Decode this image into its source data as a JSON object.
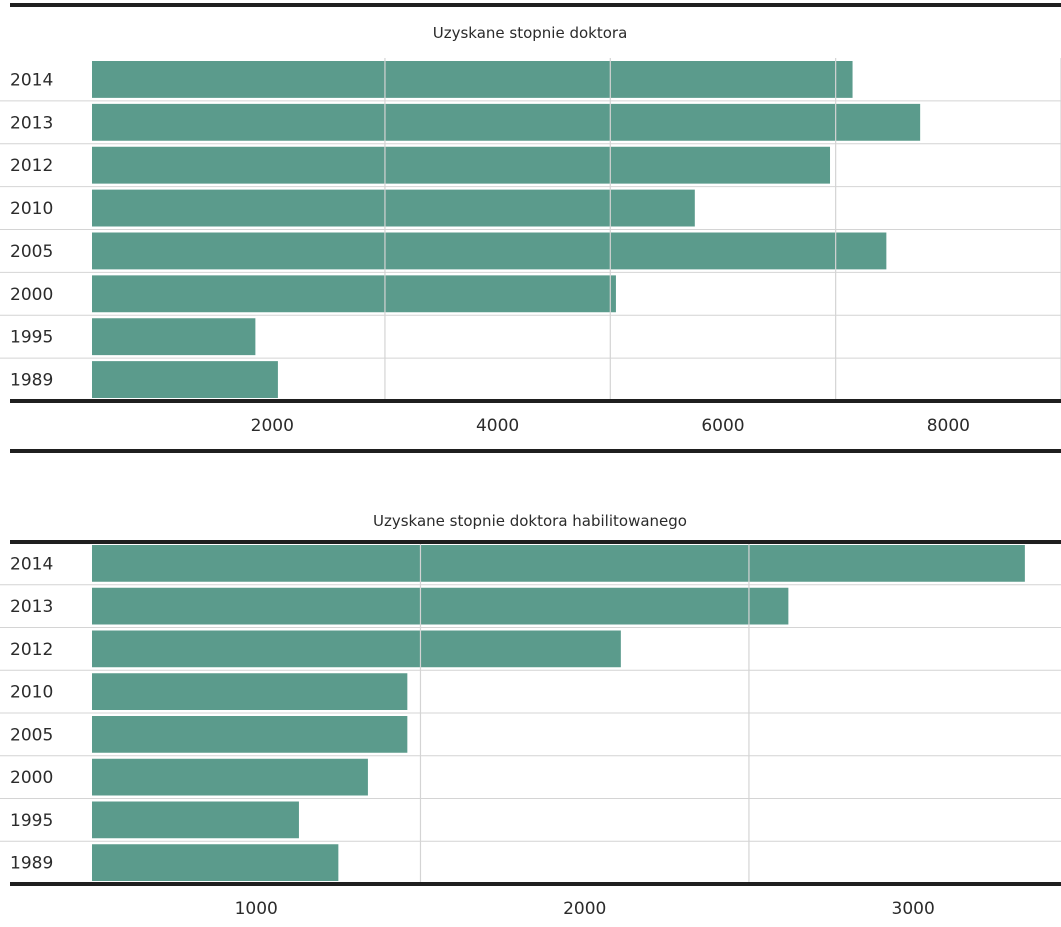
{
  "chart_data": [
    {
      "type": "bar",
      "orientation": "horizontal",
      "title": "Uzyskane stopnie doktora",
      "categories": [
        "2014",
        "2013",
        "2012",
        "2010",
        "2005",
        "2000",
        "1995",
        "1989"
      ],
      "values": [
        7150,
        7750,
        6950,
        5750,
        7450,
        5050,
        1850,
        2050
      ],
      "xticks": [
        2000,
        4000,
        6000,
        8000
      ],
      "xlim": [
        400,
        9000
      ],
      "grid": true,
      "color": "#5b9b8c"
    },
    {
      "type": "bar",
      "orientation": "horizontal",
      "title": "Uzyskane stopnie doktora habilitowanego",
      "categories": [
        "2014",
        "2013",
        "2012",
        "2010",
        "2005",
        "2000",
        "1995",
        "1989"
      ],
      "values": [
        3340,
        2620,
        2110,
        1460,
        1460,
        1340,
        1130,
        1250
      ],
      "xticks": [
        1000,
        2000,
        3000
      ],
      "xlim": [
        500,
        3450
      ],
      "grid": true,
      "color": "#5b9b8c"
    }
  ]
}
